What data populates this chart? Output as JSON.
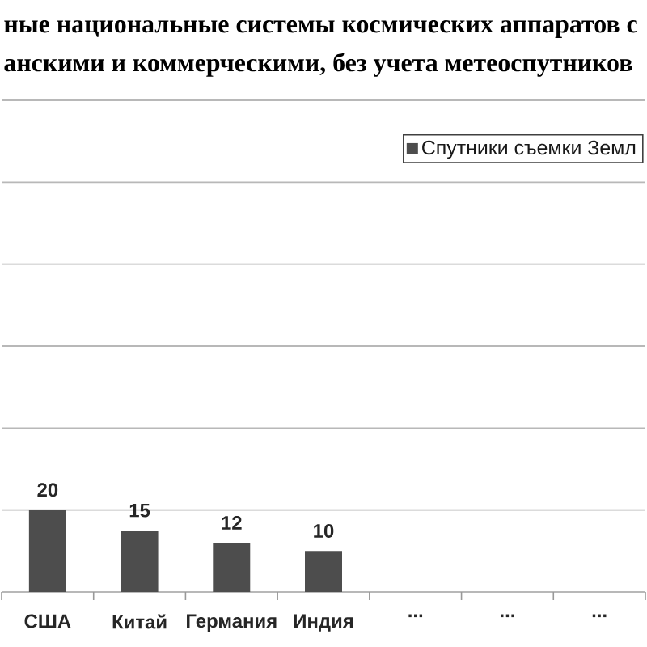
{
  "chart_data": {
    "type": "bar",
    "title": "ные национальные системы космических аппаратов с",
    "subtitle": "анскими и коммерческими, без учета метеоспутников",
    "categories": [
      "США",
      "Китай",
      "Германия",
      "Индия",
      "...",
      "...",
      "..."
    ],
    "series": [
      {
        "name": "Спутники съемки Земл",
        "color": "#4d4d4d",
        "values": [
          20,
          15,
          12,
          10,
          null,
          null,
          null
        ]
      }
    ],
    "ylim": [
      0,
      120
    ],
    "yticks": [
      {
        "value": 0,
        "label": null
      },
      {
        "value": 20,
        "label": null
      },
      {
        "value": 40,
        "label": null
      },
      {
        "value": 60,
        "label": null
      },
      {
        "value": 80,
        "label": null
      },
      {
        "value": 100,
        "label": null
      },
      {
        "value": 120,
        "label": null
      }
    ],
    "grid": "y",
    "legend": "top right",
    "tick_labels": "x",
    "data_labels": true
  }
}
